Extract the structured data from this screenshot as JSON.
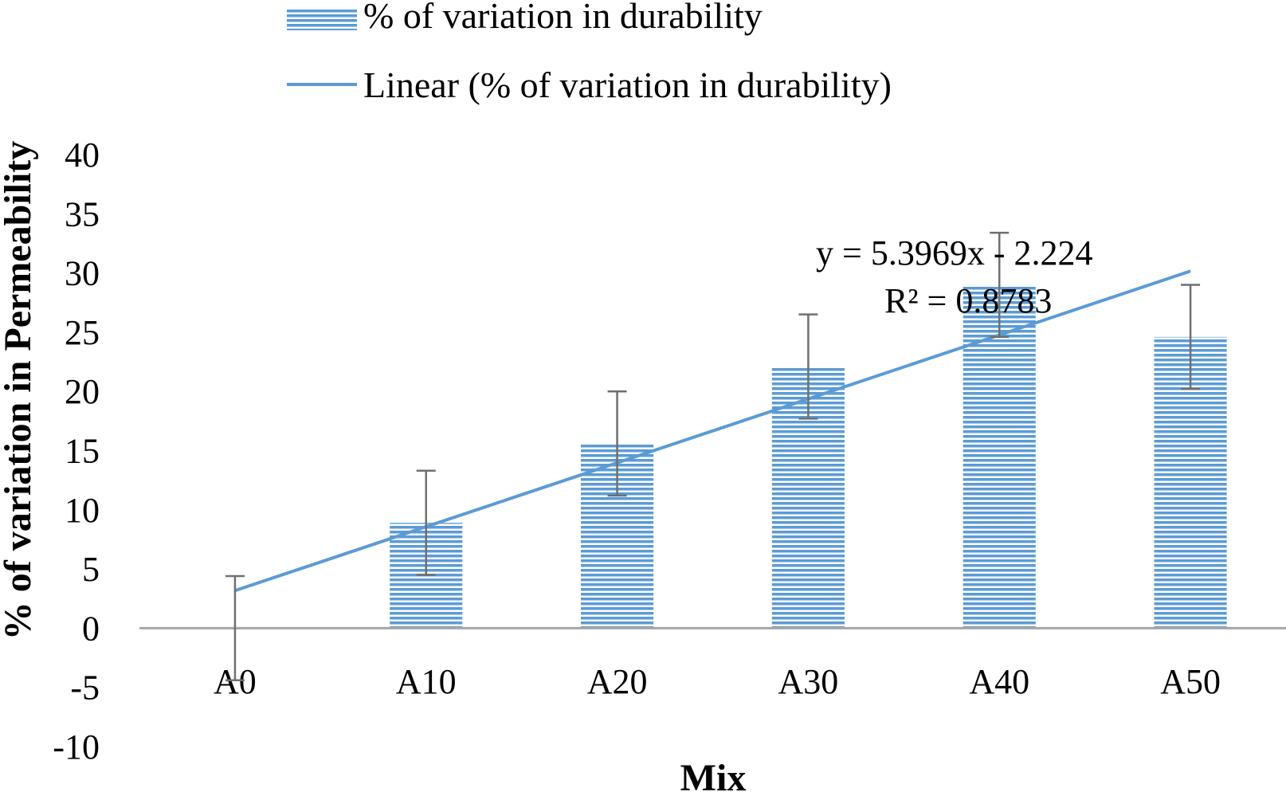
{
  "chart_data": {
    "type": "bar",
    "categories": [
      "A0",
      "A10",
      "A20",
      "A30",
      "A40",
      "A50"
    ],
    "series": [
      {
        "name": "% of variation in durability",
        "values": [
          0,
          8.9,
          15.6,
          22.1,
          29.0,
          24.6
        ],
        "error_low": [
          4.4,
          4.4,
          4.4,
          4.4,
          4.4,
          4.4
        ],
        "error_high": [
          4.4,
          4.4,
          4.4,
          4.4,
          4.4,
          4.4
        ],
        "color": "#5b9bd5"
      }
    ],
    "trendline": {
      "name": "Linear (% of variation in durability)",
      "type": "linear",
      "slope": 5.3969,
      "intercept": -2.224,
      "equation": "y = 5.3969x - 2.224",
      "r_squared": "R² = 0.8783",
      "color": "#5b9bd5"
    },
    "ylabel": "% of variation in Permeability",
    "xlabel": "Mix",
    "ylim": [
      -10,
      40
    ],
    "yticks": [
      "-10",
      "-5",
      "0",
      "5",
      "10",
      "15",
      "20",
      "25",
      "30",
      "35",
      "40"
    ],
    "grid": false,
    "legend_position": "top"
  }
}
